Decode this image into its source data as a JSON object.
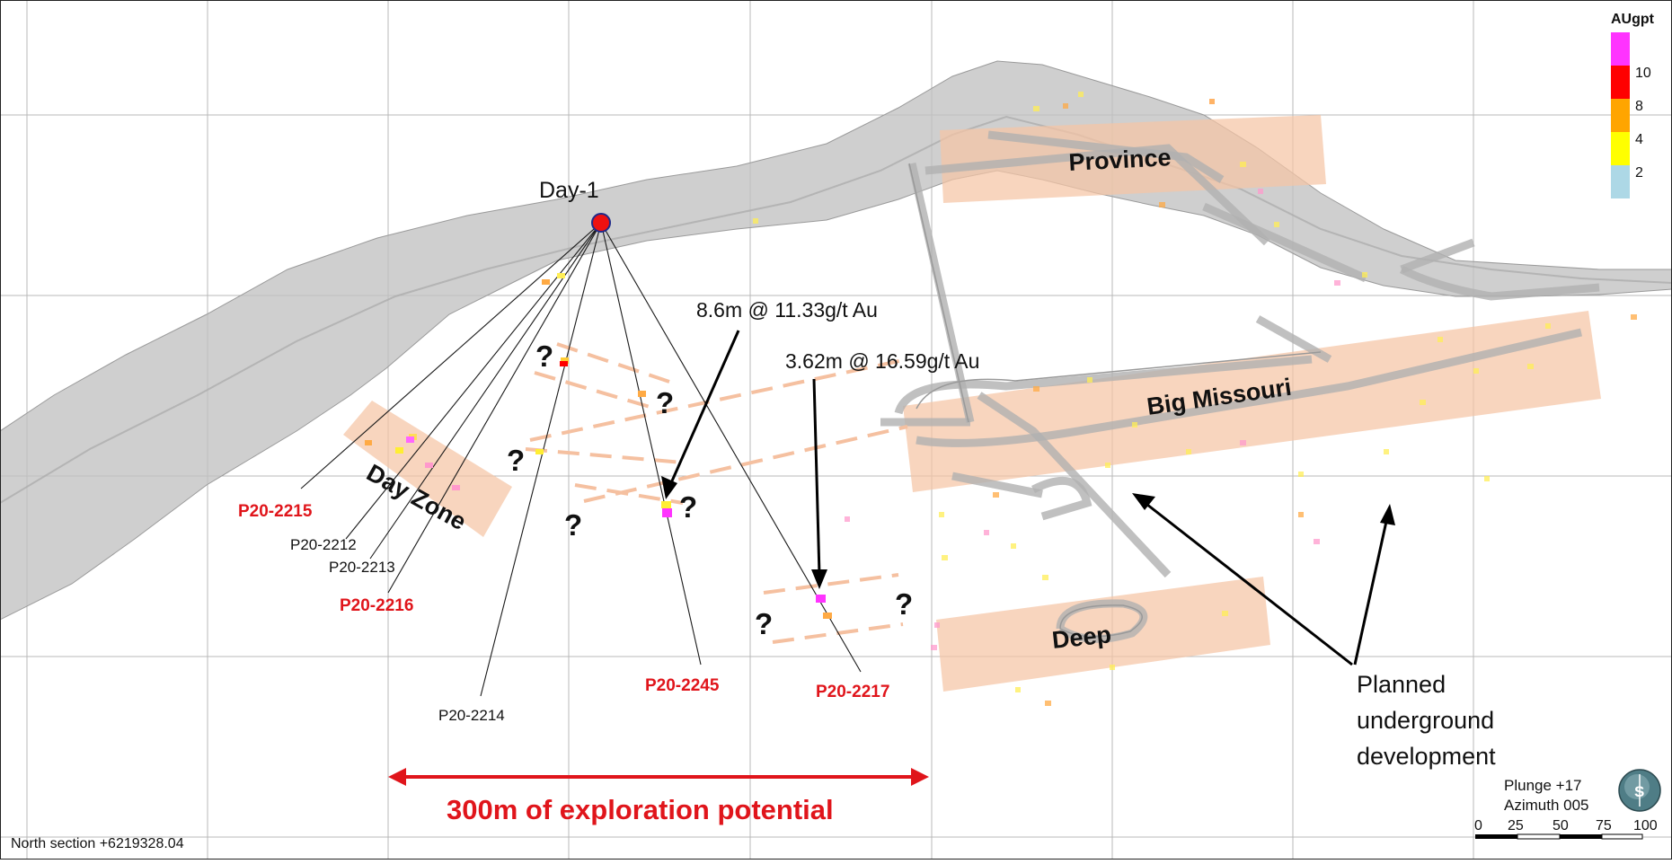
{
  "collar": {
    "label": "Day-1"
  },
  "holes": {
    "p2215": "P20-2215",
    "p2212": "P20-2212",
    "p2213": "P20-2213",
    "p2216": "P20-2216",
    "p2214": "P20-2214",
    "p2245": "P20-2245",
    "p2217": "P20-2217"
  },
  "intercepts": {
    "a": "8.6m @ 11.33g/t Au",
    "b": "3.62m @ 16.59g/t Au"
  },
  "zones": {
    "province": "Province",
    "big_missouri": "Big Missouri",
    "day_zone": "Day Zone",
    "deep": "Deep"
  },
  "question_mark": "?",
  "legend": {
    "title": "AUgpt",
    "ticks": [
      "10",
      "8",
      "4",
      "2"
    ],
    "colors": [
      "#ff33ff",
      "#ff0000",
      "#ffa500",
      "#ffff00",
      "#add8e6"
    ]
  },
  "annotation": {
    "planned_line1": "Planned",
    "planned_line2": "underground",
    "planned_line3": "development"
  },
  "exploration": {
    "label": "300m of exploration potential"
  },
  "section": {
    "label": "North section +6219328.04"
  },
  "orientation": {
    "plunge": "Plunge +17",
    "azimuth": "Azimuth 005",
    "compass_letter": "S"
  },
  "scale": {
    "ticks": [
      "0",
      "25",
      "50",
      "75",
      "100"
    ]
  },
  "colors": {
    "red_label": "#e0151b",
    "zone_fill": "#f5c5a5",
    "ground": "#bdbdbd",
    "grid": "#b0b0b0"
  }
}
